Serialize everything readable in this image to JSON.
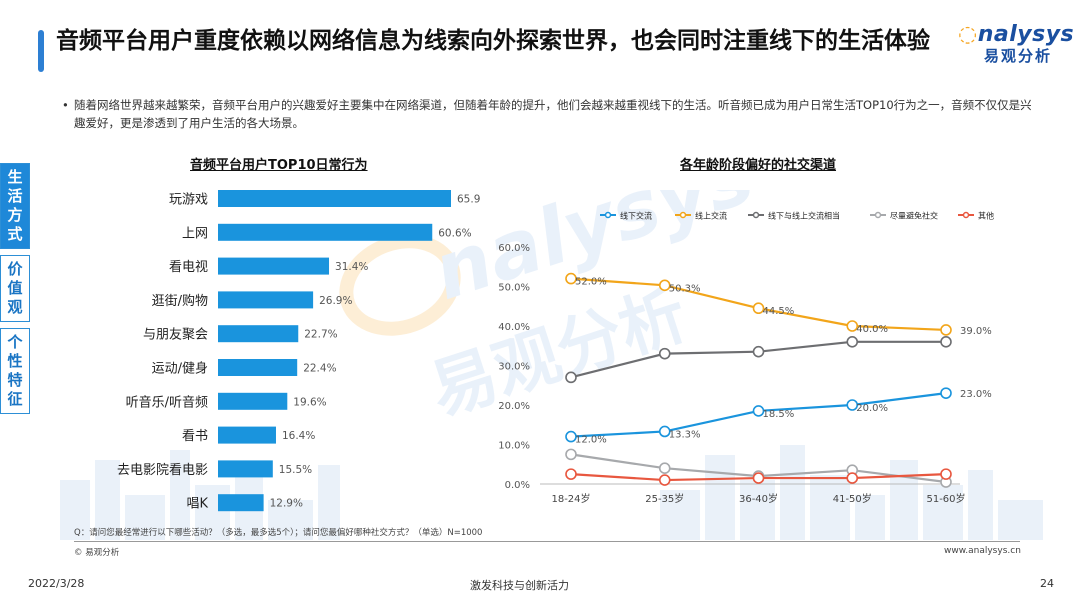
{
  "header": {
    "title": "音频平台用户重度依赖以网络信息为线索向外探索世界，也会同时注重线下的生活体验",
    "logo_en": "nalysys",
    "logo_cn": "易观分析"
  },
  "bullet": "随着网络世界越来越繁荣，音频平台用户的兴趣爱好主要集中在网络渠道，但随着年龄的提升，他们会越来越重视线下的生活。听音频已成为用户日常生活TOP10行为之一，音频不仅仅是兴趣爱好，更是渗透到了用户生活的各大场景。",
  "side_tabs": [
    "生活方式",
    "价值观",
    "个性特征"
  ],
  "chart_data": [
    {
      "type": "bar",
      "orientation": "horizontal",
      "title": "音频平台用户TOP10日常行为",
      "categories": [
        "玩游戏",
        "上网",
        "看电视",
        "逛街/购物",
        "与朋友聚会",
        "运动/健身",
        "听音乐/听音频",
        "看书",
        "去电影院看电影",
        "唱K"
      ],
      "values": [
        65.9,
        60.6,
        31.4,
        26.9,
        22.7,
        22.4,
        19.6,
        16.4,
        15.5,
        12.9
      ],
      "labels": [
        "65.9%",
        "60.6%",
        "31.4%",
        "26.9%",
        "22.7%",
        "22.4%",
        "19.6%",
        "16.4%",
        "15.5%",
        "12.9%"
      ],
      "color": "#1a94dd",
      "xlim": [
        0,
        70
      ]
    },
    {
      "type": "line",
      "title": "各年龄阶段偏好的社交渠道",
      "categories": [
        "18-24岁",
        "25-35岁",
        "36-40岁",
        "41-50岁",
        "51-60岁"
      ],
      "ylim": [
        0,
        60
      ],
      "yticks": [
        "0.0%",
        "10.0%",
        "20.0%",
        "30.0%",
        "40.0%",
        "50.0%",
        "60.0%"
      ],
      "legend_position": "top",
      "series": [
        {
          "name": "线下交流",
          "color": "#1a94dd",
          "values": [
            12.0,
            13.3,
            18.5,
            20.0,
            23.0
          ],
          "labels": [
            "12.0%",
            "13.3%",
            "18.5%",
            "20.0%",
            "23.0%"
          ]
        },
        {
          "name": "线上交流",
          "color": "#f2a51a",
          "values": [
            52.0,
            50.3,
            44.5,
            40.0,
            39.0
          ],
          "labels": [
            "52.0%",
            "50.3%",
            "44.5%",
            "40.0%",
            "39.0%"
          ]
        },
        {
          "name": "线下与线上交流相当",
          "color": "#6d6e71",
          "values": [
            27.0,
            33.0,
            33.5,
            36.0,
            36.0
          ],
          "labels": []
        },
        {
          "name": "尽量避免社交",
          "color": "#a7a9ac",
          "values": [
            7.5,
            4.0,
            2.0,
            3.5,
            0.5
          ],
          "labels": []
        },
        {
          "name": "其他",
          "color": "#e8573f",
          "values": [
            2.5,
            1.0,
            1.5,
            1.5,
            2.5
          ],
          "labels": []
        }
      ]
    }
  ],
  "footer": {
    "note": "Q：请问您最经常进行以下哪些活动？（多选，最多选5个）；请问您最偏好哪种社交方式？（单选）N=1000",
    "copyright": "© 易观分析",
    "site": "www.analysys.cn",
    "date": "2022/3/28",
    "slogan": "激发科技与创新活力",
    "page": "24"
  }
}
